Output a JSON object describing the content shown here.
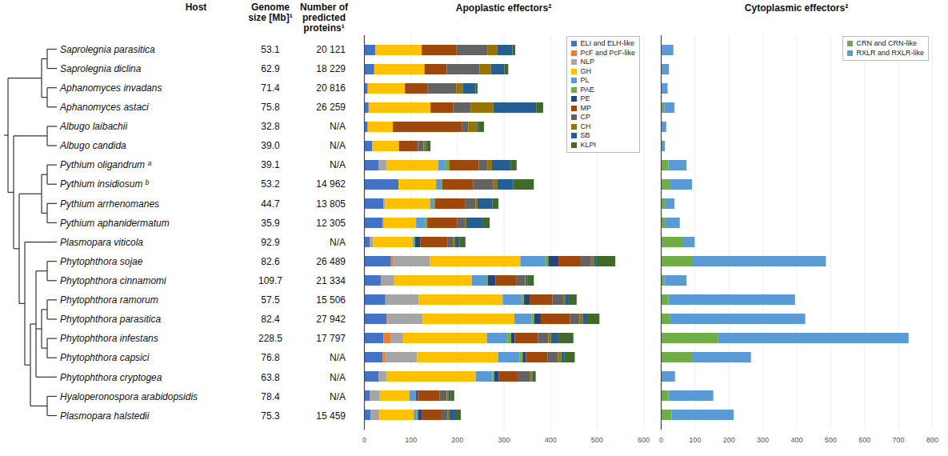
{
  "chart_data": [
    {
      "type": "bar",
      "orientation": "horizontal",
      "stacked": true,
      "grid": true,
      "legend": "top-right",
      "title": "Apoplastic effectors²",
      "categories": [
        "Saprolegnia parasitica",
        "Saprolegnia diclina",
        "Aphanomyces invadans",
        "Aphanomyces astaci",
        "Albugo laibachii",
        "Albugo candida",
        "Pythium oligandrum ᵃ",
        "Pythium insidiosum ᵇ",
        "Pythium arrhenomanes",
        "Pythium aphanidermatum",
        "Plasmopara viticola",
        "Phytophthora sojae",
        "Phytophthora cinnamomi",
        "Phytophthora ramorum",
        "Phytophthora parasitica",
        "Phytophthora infestans",
        "Phytophthora capsici",
        "Phytophthora cryptogea",
        "Hyaloperonospora arabidopsidis",
        "Plasmopara halstedii"
      ],
      "series": [
        {
          "name": "ELI and ELH-like",
          "color": "#4472C4",
          "values": [
            24,
            22,
            8,
            10,
            8,
            18,
            32,
            74,
            42,
            40,
            12,
            58,
            36,
            46,
            48,
            42,
            40,
            32,
            12,
            14
          ]
        },
        {
          "name": "PcF and PcF-like",
          "color": "#ED7D31",
          "values": [
            0,
            0,
            0,
            0,
            0,
            0,
            0,
            0,
            0,
            0,
            0,
            4,
            0,
            0,
            3,
            16,
            6,
            0,
            0,
            0
          ]
        },
        {
          "name": "NLP",
          "color": "#A5A5A5",
          "values": [
            0,
            0,
            0,
            0,
            0,
            0,
            16,
            0,
            3,
            3,
            8,
            80,
            29,
            72,
            75,
            26,
            68,
            16,
            22,
            19
          ]
        },
        {
          "name": "GH",
          "color": "#FFC000",
          "values": [
            100,
            108,
            80,
            133,
            54,
            57,
            112,
            81,
            97,
            69,
            85,
            194,
            167,
            180,
            197,
            180,
            174,
            192,
            64,
            74
          ]
        },
        {
          "name": "PL",
          "color": "#5B9BD5",
          "values": [
            0,
            0,
            0,
            0,
            0,
            0,
            15,
            10,
            6,
            20,
            3,
            54,
            31,
            42,
            37,
            44,
            46,
            36,
            12,
            6
          ]
        },
        {
          "name": "PAE",
          "color": "#70AD47",
          "values": [
            0,
            0,
            0,
            0,
            0,
            0,
            8,
            3,
            4,
            4,
            2,
            6,
            3,
            4,
            6,
            8,
            7,
            4,
            2,
            3
          ]
        },
        {
          "name": "PE",
          "color": "#264478",
          "values": [
            0,
            0,
            0,
            0,
            0,
            0,
            0,
            0,
            0,
            0,
            11,
            22,
            17,
            12,
            14,
            8,
            7,
            10,
            4,
            8
          ]
        },
        {
          "name": "MP",
          "color": "#9E480E",
          "values": [
            75,
            48,
            49,
            49,
            149,
            41,
            64,
            67,
            66,
            64,
            59,
            48,
            45,
            49,
            63,
            50,
            46,
            40,
            46,
            41
          ]
        },
        {
          "name": "CP",
          "color": "#636363",
          "values": [
            66,
            70,
            61,
            37,
            13,
            12,
            18,
            43,
            22,
            18,
            12,
            22,
            18,
            23,
            20,
            22,
            23,
            26,
            16,
            15
          ]
        },
        {
          "name": "CH",
          "color": "#997300",
          "values": [
            21,
            25,
            14,
            49,
            19,
            5,
            10,
            9,
            4,
            2,
            4,
            6,
            3,
            4,
            7,
            6,
            7,
            4,
            4,
            4
          ]
        },
        {
          "name": "SB",
          "color": "#255E91",
          "values": [
            33,
            29,
            28,
            92,
            3,
            3,
            40,
            34,
            32,
            36,
            9,
            6,
            3,
            8,
            8,
            16,
            6,
            2,
            5,
            12
          ]
        },
        {
          "name": "KLPI",
          "color": "#43682B",
          "values": [
            6,
            8,
            4,
            15,
            12,
            7,
            13,
            44,
            13,
            14,
            13,
            40,
            13,
            17,
            28,
            32,
            23,
            7,
            7,
            12
          ]
        }
      ],
      "xlim": [
        0,
        600
      ],
      "xticks": [
        0,
        100,
        200,
        300,
        400,
        500,
        600
      ]
    },
    {
      "type": "bar",
      "orientation": "horizontal",
      "stacked": true,
      "grid": true,
      "legend": "top-right",
      "title": "Cytoplasmic effectors²",
      "categories": [
        "Saprolegnia parasitica",
        "Saprolegnia diclina",
        "Aphanomyces invadans",
        "Aphanomyces astaci",
        "Albugo laibachii",
        "Albugo candida",
        "Pythium oligandrum ᵃ",
        "Pythium insidiosum ᵇ",
        "Pythium arrhenomanes",
        "Pythium aphanidermatum",
        "Plasmopara viticola",
        "Phytophthora sojae",
        "Phytophthora cinnamomi",
        "Phytophthora ramorum",
        "Phytophthora parasitica",
        "Phytophthora infestans",
        "Phytophthora capsici",
        "Phytophthora cryptogea",
        "Hyaloperonospora arabidopsidis",
        "Plasmopara halstedii"
      ],
      "series": [
        {
          "name": "CRN and CRN-like",
          "color": "#70AD47",
          "values": [
            0,
            0,
            0,
            10,
            0,
            0,
            22,
            28,
            14,
            14,
            66,
            92,
            10,
            22,
            28,
            168,
            92,
            0,
            22,
            32
          ]
        },
        {
          "name": "RXLR and RXLR-like",
          "color": "#5B9BD5",
          "values": [
            37,
            24,
            20,
            30,
            16,
            12,
            54,
            64,
            26,
            42,
            34,
            395,
            66,
            374,
            398,
            563,
            174,
            42,
            133,
            183
          ]
        }
      ],
      "xlim": [
        0,
        800
      ],
      "xticks": [
        0,
        100,
        200,
        300,
        400,
        500,
        600,
        700,
        800
      ]
    }
  ],
  "table": {
    "columns": [
      "Host",
      "Genome size [Mb]¹",
      "Number of predicted proteins¹"
    ],
    "genome_size": [
      "53.1",
      "62.9",
      "71.4",
      "75.8",
      "32.8",
      "39.0",
      "39.1",
      "53.2",
      "44.7",
      "35.9",
      "92.9",
      "82.6",
      "109.7",
      "57.5",
      "82.4",
      "228.5",
      "76.8",
      "63.8",
      "78.4",
      "75.3"
    ],
    "predicted_proteins": [
      "20 121",
      "18 229",
      "20 816",
      "26 259",
      "N/A",
      "N/A",
      "N/A",
      "14 962",
      "13 805",
      "12 305",
      "N/A",
      "26 489",
      "21 334",
      "15 506",
      "27 942",
      "17 797",
      "N/A",
      "N/A",
      "N/A",
      "15 459"
    ]
  }
}
